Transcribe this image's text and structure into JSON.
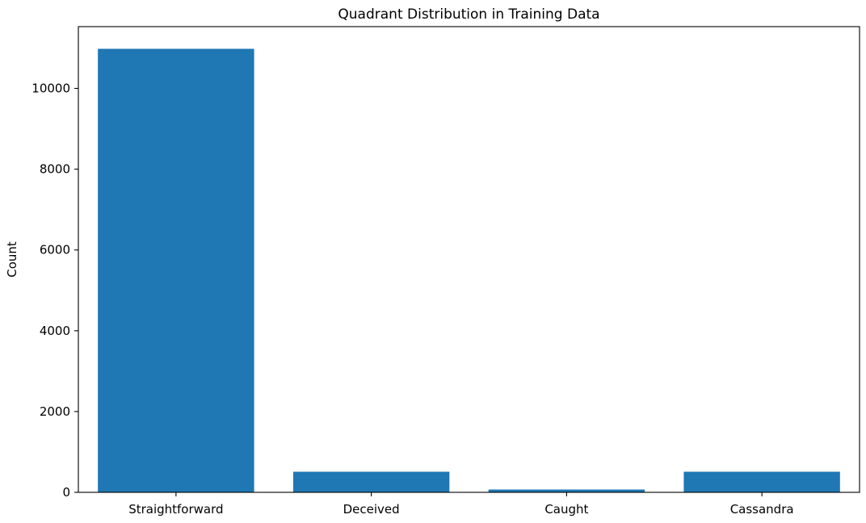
{
  "chart_data": {
    "type": "bar",
    "title": "Quadrant Distribution in Training Data",
    "xlabel": "",
    "ylabel": "Count",
    "categories": [
      "Straightforward",
      "Deceived",
      "Caught",
      "Cassandra"
    ],
    "values": [
      10980,
      510,
      70,
      510
    ],
    "ylim": [
      0,
      11529
    ],
    "yticks": [
      0,
      2000,
      4000,
      6000,
      8000,
      10000
    ],
    "ytick_labels": [
      "0",
      "2000",
      "4000",
      "6000",
      "8000",
      "10000"
    ],
    "grid": false,
    "legend": "none",
    "bar_color": "#1f77b4"
  }
}
